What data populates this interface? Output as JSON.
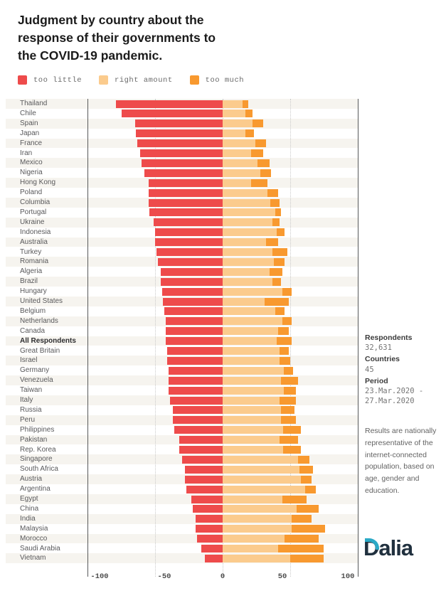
{
  "title": "Judgment by country about the\nresponse of their governments to\nthe COVID-19 pandemic.",
  "legend": [
    {
      "label": "too little",
      "color": "#ee4b4b"
    },
    {
      "label": "right amount",
      "color": "#fbcb8d"
    },
    {
      "label": "too much",
      "color": "#f8992f"
    }
  ],
  "colors": {
    "too_little": "#ee4b4b",
    "right_amount": "#fbcb8d",
    "too_much": "#f8992f",
    "row_stripe": "#f6f4ef",
    "axis_line": "#58595b",
    "logo_navy": "#20303e",
    "logo_teal": "#2ba9c6"
  },
  "chart_data": {
    "type": "bar",
    "variant": "diverging-stacked-horizontal",
    "title": "Judgment by country about the response of their governments to the COVID-19 pandemic.",
    "xlabel": "",
    "ylabel": "",
    "xlim": [
      -100,
      100
    ],
    "axis_ticks": [
      "-100",
      "-50",
      "0",
      "50",
      "100"
    ],
    "grid": "dotted verticals at -50, 0, 50; solid boundary lines at -100 and 100",
    "legend_position": "top-left",
    "series_names": [
      "too little",
      "right amount",
      "too much"
    ],
    "note": "too little plotted leftward from 0; right amount and too much stacked rightward from 0; values in percent",
    "rows": [
      {
        "label": "Thailand",
        "too_little": 79,
        "right_amount": 15,
        "too_much": 4
      },
      {
        "label": "Chile",
        "too_little": 75,
        "right_amount": 17,
        "too_much": 5
      },
      {
        "label": "Spain",
        "too_little": 65,
        "right_amount": 22,
        "too_much": 8
      },
      {
        "label": "Japan",
        "too_little": 64,
        "right_amount": 17,
        "too_much": 6
      },
      {
        "label": "France",
        "too_little": 63,
        "right_amount": 24,
        "too_much": 8
      },
      {
        "label": "Iran",
        "too_little": 61,
        "right_amount": 21,
        "too_much": 9
      },
      {
        "label": "Mexico",
        "too_little": 60,
        "right_amount": 26,
        "too_much": 9
      },
      {
        "label": "Nigeria",
        "too_little": 58,
        "right_amount": 28,
        "too_much": 8
      },
      {
        "label": "Hong Kong",
        "too_little": 55,
        "right_amount": 21,
        "too_much": 12
      },
      {
        "label": "Poland",
        "too_little": 55,
        "right_amount": 33,
        "too_much": 8
      },
      {
        "label": "Columbia",
        "too_little": 55,
        "right_amount": 35,
        "too_much": 7
      },
      {
        "label": "Portugal",
        "too_little": 54,
        "right_amount": 39,
        "too_much": 4
      },
      {
        "label": "Ukraine",
        "too_little": 51,
        "right_amount": 37,
        "too_much": 5
      },
      {
        "label": "Indonesia",
        "too_little": 50,
        "right_amount": 40,
        "too_much": 6
      },
      {
        "label": "Australia",
        "too_little": 50,
        "right_amount": 32,
        "too_much": 9
      },
      {
        "label": "Turkey",
        "too_little": 49,
        "right_amount": 37,
        "too_much": 11
      },
      {
        "label": "Romania",
        "too_little": 48,
        "right_amount": 38,
        "too_much": 8
      },
      {
        "label": "Algeria",
        "too_little": 46,
        "right_amount": 35,
        "too_much": 9
      },
      {
        "label": "Brazil",
        "too_little": 46,
        "right_amount": 37,
        "too_much": 6
      },
      {
        "label": "Hungary",
        "too_little": 45,
        "right_amount": 44,
        "too_much": 7
      },
      {
        "label": "United States",
        "too_little": 44,
        "right_amount": 31,
        "too_much": 18
      },
      {
        "label": "Belgium",
        "too_little": 43,
        "right_amount": 39,
        "too_much": 7
      },
      {
        "label": "Netherlands",
        "too_little": 42,
        "right_amount": 44,
        "too_much": 7
      },
      {
        "label": "Canada",
        "too_little": 42,
        "right_amount": 41,
        "too_much": 8
      },
      {
        "label": "All Respondents",
        "too_little": 42,
        "right_amount": 40,
        "too_much": 11,
        "bold": true
      },
      {
        "label": "Great Britain",
        "too_little": 41,
        "right_amount": 42,
        "too_much": 7
      },
      {
        "label": "Israel",
        "too_little": 41,
        "right_amount": 42,
        "too_much": 8
      },
      {
        "label": "Germany",
        "too_little": 40,
        "right_amount": 45,
        "too_much": 7
      },
      {
        "label": "Venezuela",
        "too_little": 40,
        "right_amount": 43,
        "too_much": 13
      },
      {
        "label": "Taiwan",
        "too_little": 40,
        "right_amount": 45,
        "too_much": 9
      },
      {
        "label": "Italy",
        "too_little": 39,
        "right_amount": 42,
        "too_much": 12
      },
      {
        "label": "Russia",
        "too_little": 37,
        "right_amount": 43,
        "too_much": 10
      },
      {
        "label": "Peru",
        "too_little": 37,
        "right_amount": 43,
        "too_much": 11
      },
      {
        "label": "Philippines",
        "too_little": 36,
        "right_amount": 45,
        "too_much": 13
      },
      {
        "label": "Pakistan",
        "too_little": 32,
        "right_amount": 42,
        "too_much": 14
      },
      {
        "label": "Rep. Korea",
        "too_little": 32,
        "right_amount": 45,
        "too_much": 13
      },
      {
        "label": "Singapore",
        "too_little": 30,
        "right_amount": 56,
        "too_much": 8
      },
      {
        "label": "South Africa",
        "too_little": 28,
        "right_amount": 57,
        "too_much": 10
      },
      {
        "label": "Austria",
        "too_little": 28,
        "right_amount": 58,
        "too_much": 8
      },
      {
        "label": "Argentina",
        "too_little": 27,
        "right_amount": 61,
        "too_much": 8
      },
      {
        "label": "Egypt",
        "too_little": 23,
        "right_amount": 44,
        "too_much": 18
      },
      {
        "label": "China",
        "too_little": 22,
        "right_amount": 55,
        "too_much": 16
      },
      {
        "label": "India",
        "too_little": 20,
        "right_amount": 51,
        "too_much": 15
      },
      {
        "label": "Malaysia",
        "too_little": 20,
        "right_amount": 51,
        "too_much": 25
      },
      {
        "label": "Morocco",
        "too_little": 19,
        "right_amount": 46,
        "too_much": 25
      },
      {
        "label": "Saudi Arabia",
        "too_little": 16,
        "right_amount": 41,
        "too_much": 34
      },
      {
        "label": "Vietnam",
        "too_little": 13,
        "right_amount": 50,
        "too_much": 25
      }
    ]
  },
  "sidebar": {
    "respondents_label": "Respondents",
    "respondents_value": "32,631",
    "countries_label": "Countries",
    "countries_value": "45",
    "period_label": "Period",
    "period_value": "23.Mar.2020 -\n27.Mar.2020",
    "note": "Results are nationally representative of the internet-connected population, based on age, gender and education.",
    "logo_text": "Dalia"
  }
}
